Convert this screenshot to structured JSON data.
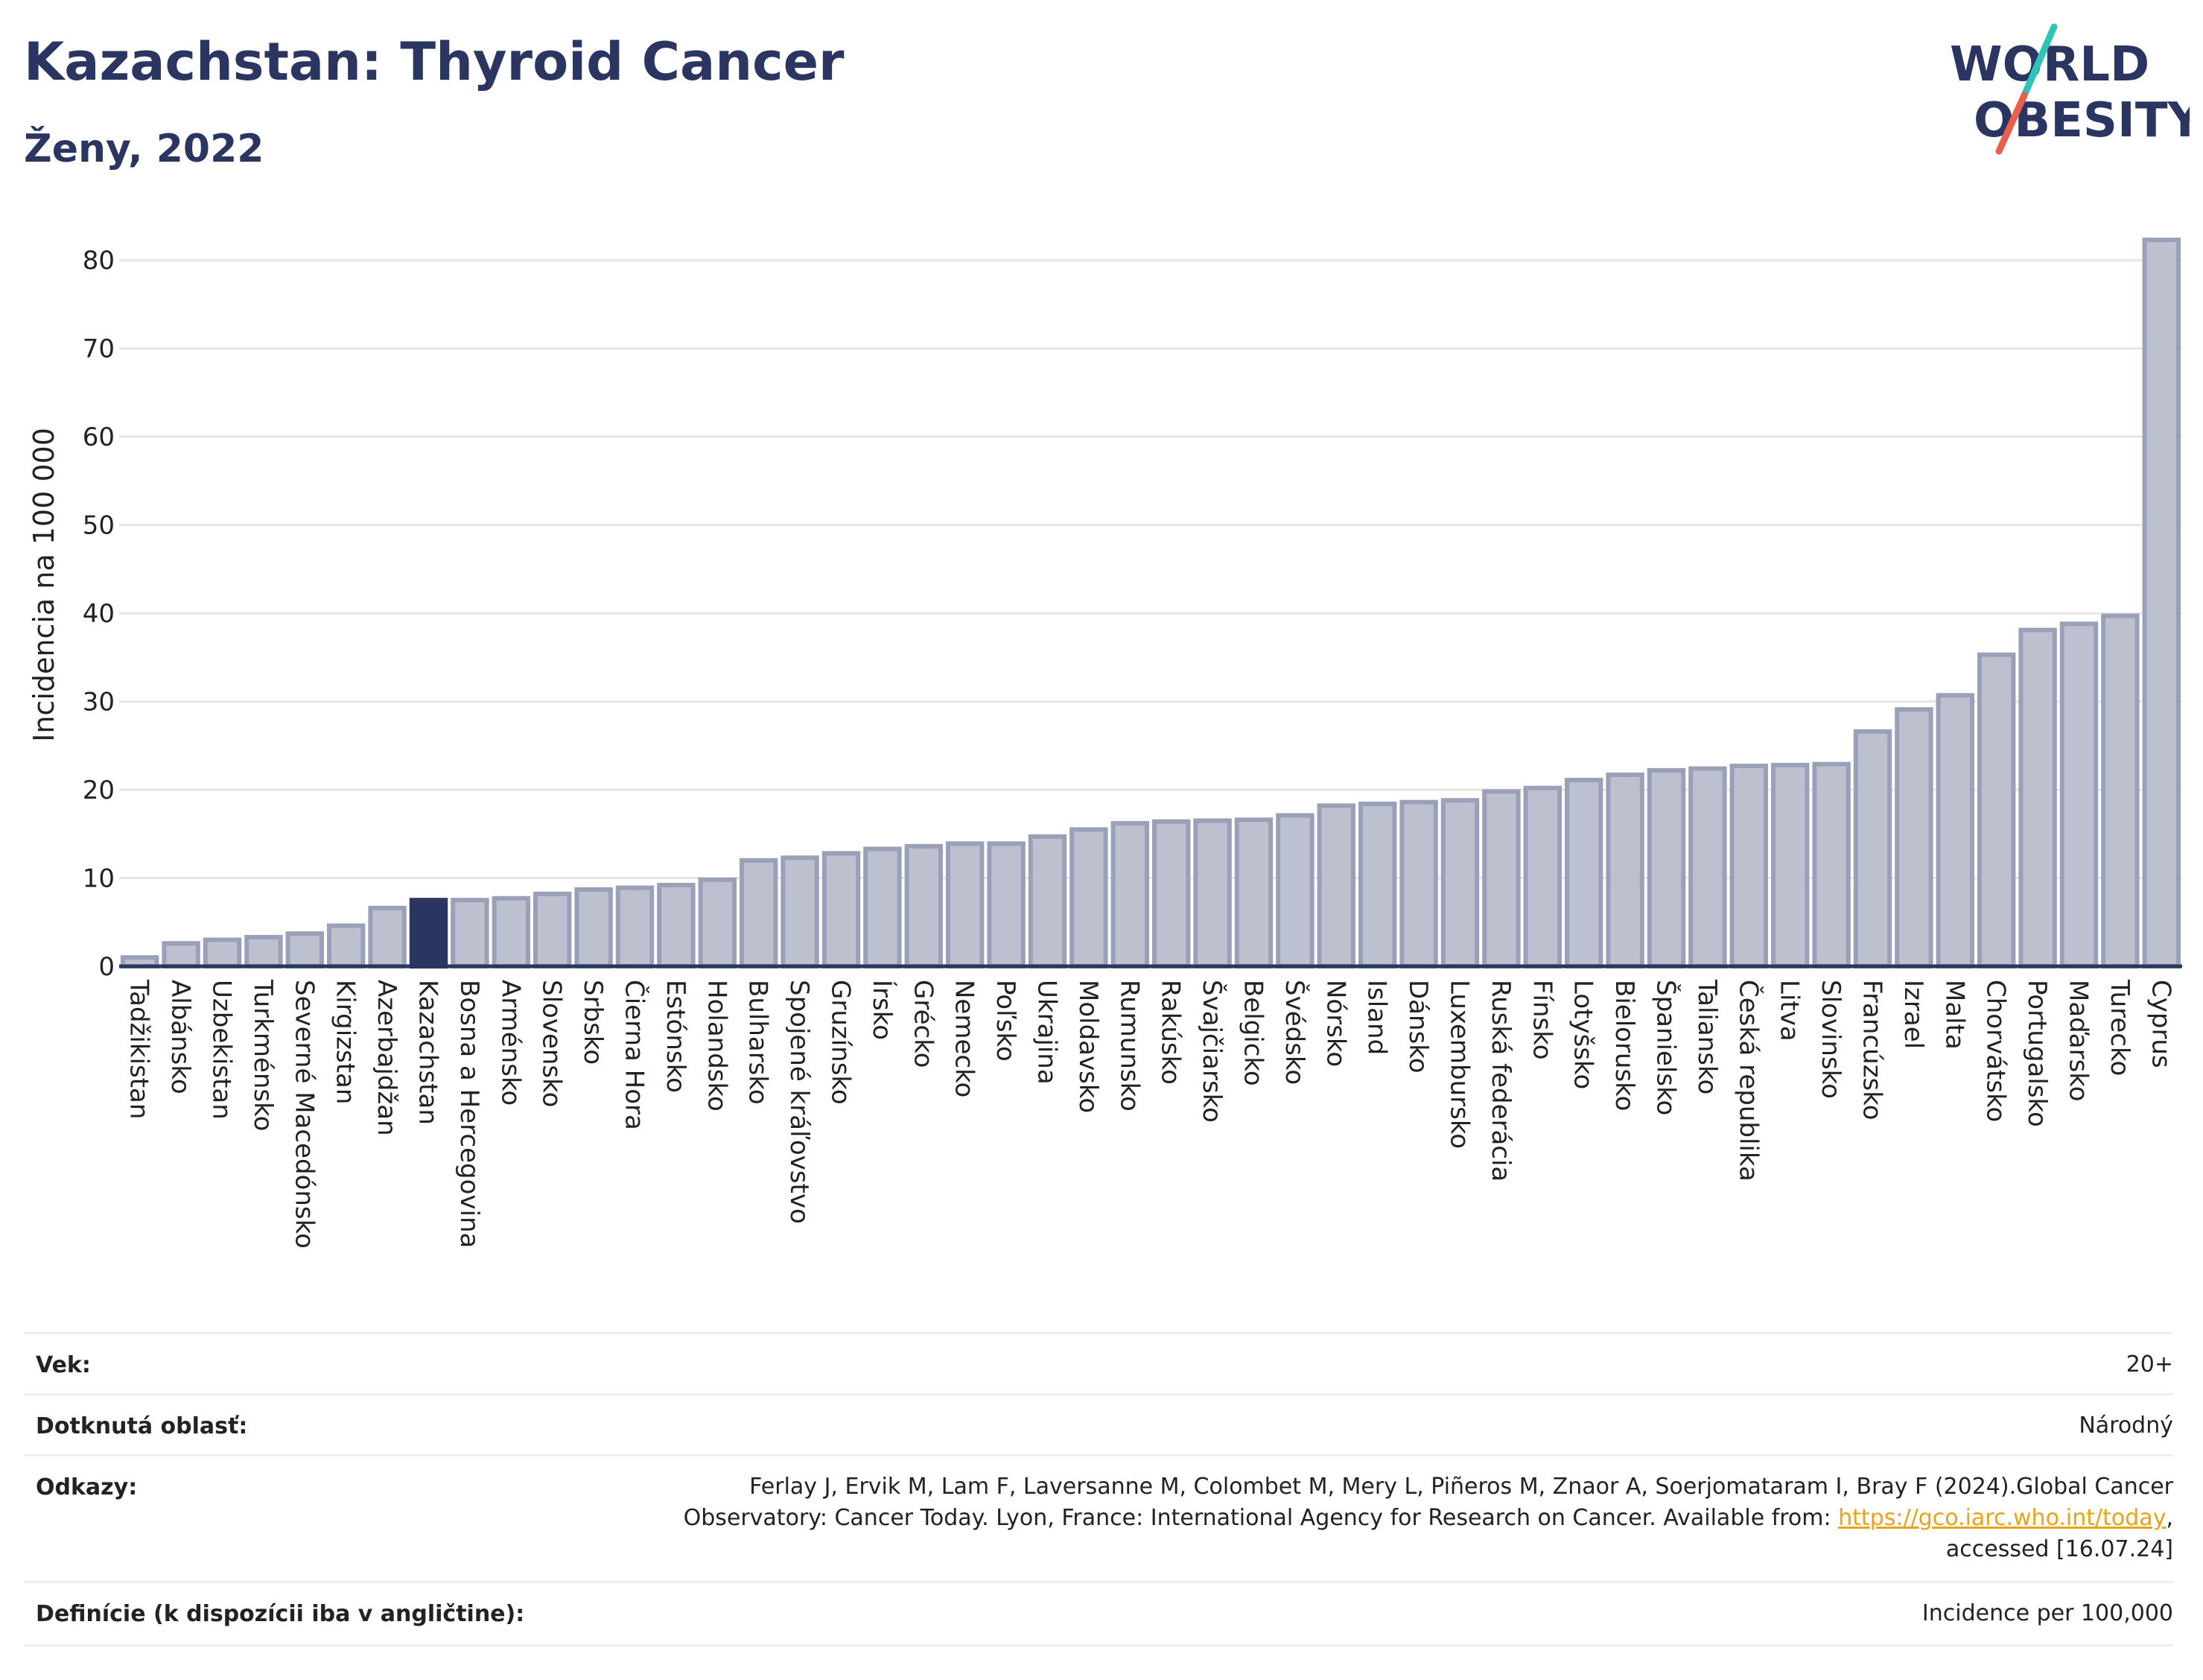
{
  "header": {
    "title": "Kazachstan: Thyroid Cancer",
    "subtitle": "Ženy, 2022"
  },
  "logo": {
    "line1": "WORLD",
    "line2": "OBESITY",
    "slash_colors": [
      "#2ec4b6",
      "#e8604c"
    ]
  },
  "colors": {
    "bar": "#bcc0cf",
    "bar_stroke": "#9aa0b8",
    "highlight": "#2b3561",
    "axis": "#2b3561",
    "grid": "#e6e6e6",
    "title": "#2b3561"
  },
  "chart_data": {
    "type": "bar",
    "ylabel": "Incidencia na 100 000",
    "ylim": [
      0,
      85
    ],
    "yticks": [
      0,
      10,
      20,
      30,
      40,
      50,
      60,
      70,
      80
    ],
    "grid": true,
    "highlight": "Kazachstan",
    "categories": [
      "Tadžikistan",
      "Albánsko",
      "Uzbekistan",
      "Turkménsko",
      "Severné Macedónsko",
      "Kirgizstan",
      "Azerbajdžan",
      "Kazachstan",
      "Bosna a Hercegovina",
      "Arménsko",
      "Slovensko",
      "Srbsko",
      "Čierna Hora",
      "Estónsko",
      "Holandsko",
      "Bulharsko",
      "Spojené kráľovstvo",
      "Gruzínsko",
      "Írsko",
      "Grécko",
      "Nemecko",
      "Poľsko",
      "Ukrajina",
      "Moldavsko",
      "Rumunsko",
      "Rakúsko",
      "Švajčiarsko",
      "Belgicko",
      "Švédsko",
      "Nórsko",
      "Island",
      "Dánsko",
      "Luxembursko",
      "Ruská federácia",
      "Fínsko",
      "Lotyšsko",
      "Bielorusko",
      "Španielsko",
      "Taliansko",
      "Česká republika",
      "Litva",
      "Slovinsko",
      "Francúzsko",
      "Izrael",
      "Malta",
      "Chorvátsko",
      "Portugalsko",
      "Maďarsko",
      "Turecko",
      "Cyprus"
    ],
    "values": [
      1.0,
      2.6,
      3.0,
      3.3,
      3.7,
      4.6,
      6.6,
      7.5,
      7.5,
      7.7,
      8.2,
      8.7,
      8.9,
      9.2,
      9.8,
      12.0,
      12.3,
      12.8,
      13.3,
      13.6,
      13.9,
      13.9,
      14.7,
      15.5,
      16.2,
      16.4,
      16.5,
      16.6,
      17.1,
      18.2,
      18.4,
      18.6,
      18.8,
      19.8,
      20.2,
      21.1,
      21.7,
      22.2,
      22.4,
      22.7,
      22.8,
      22.9,
      26.6,
      29.1,
      30.7,
      35.3,
      38.1,
      38.8,
      39.7,
      82.3
    ]
  },
  "meta": {
    "age_label": "Vek:",
    "age_value": "20+",
    "area_label": "Dotknutá oblasť:",
    "area_value": "Národný",
    "refs_label": "Odkazy:",
    "refs_line1": "Ferlay J, Ervik M, Lam F, Laversanne M, Colombet M, Mery L, Piñeros M, Znaor A, Soerjomataram I, Bray F (2024).Global Cancer",
    "refs_line2_pre": "Observatory: Cancer Today. Lyon, France: International Agency for Research on Cancer. Available from: ",
    "refs_link": "https://gco.iarc.who.int/today",
    "refs_line2_post": ",",
    "refs_line3": "accessed [16.07.24]",
    "def_label": "Definície (k dispozícii iba v angličtine):",
    "def_value": "Incidence per 100,000"
  }
}
